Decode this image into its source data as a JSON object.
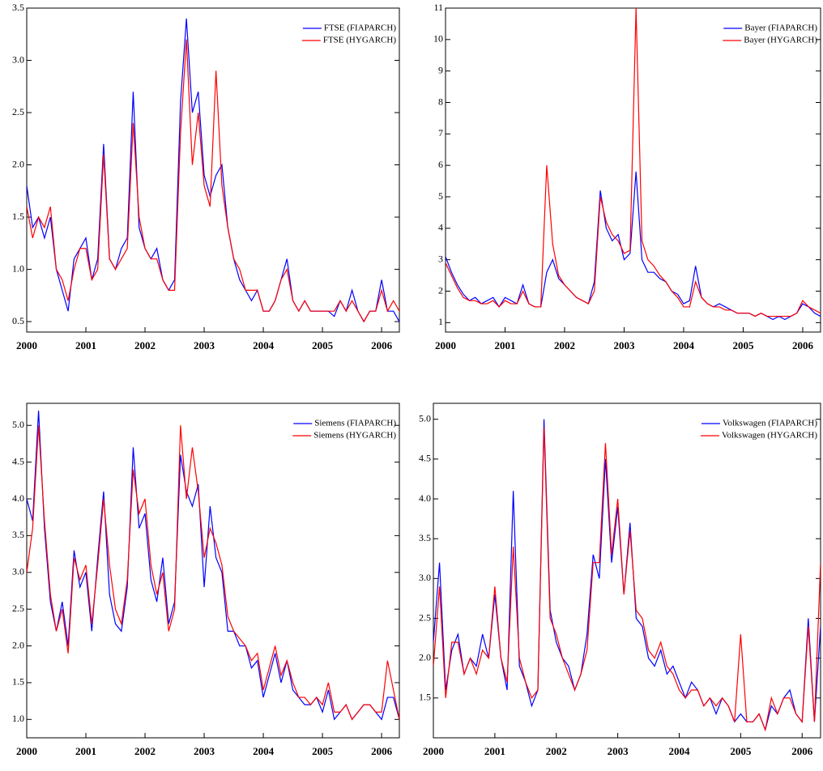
{
  "chart_data": [
    {
      "type": "line",
      "xlim": [
        2000,
        2006.3
      ],
      "xticks": [
        2000,
        2001,
        2002,
        2003,
        2004,
        2005,
        2006
      ],
      "ylim": [
        0.4,
        3.5
      ],
      "yticks": [
        0.5,
        {
          "value": 1,
          "label": "1.0"
        },
        1.5,
        {
          "value": 2,
          "label": "2.0"
        },
        2.5,
        {
          "value": 3,
          "label": "3.0"
        },
        3.5
      ],
      "legend": "top-right",
      "x": [
        2000,
        2000.1,
        2000.2,
        2000.3,
        2000.4,
        2000.5,
        2000.6,
        2000.7,
        2000.8,
        2000.9,
        2001,
        2001.1,
        2001.2,
        2001.3,
        2001.4,
        2001.5,
        2001.6,
        2001.7,
        2001.8,
        2001.9,
        2002,
        2002.1,
        2002.2,
        2002.3,
        2002.4,
        2002.5,
        2002.6,
        2002.7,
        2002.8,
        2002.9,
        2003,
        2003.1,
        2003.2,
        2003.3,
        2003.4,
        2003.5,
        2003.6,
        2003.7,
        2003.8,
        2003.9,
        2004,
        2004.1,
        2004.2,
        2004.3,
        2004.4,
        2004.5,
        2004.6,
        2004.7,
        2004.8,
        2004.9,
        2005,
        2005.1,
        2005.2,
        2005.3,
        2005.4,
        2005.5,
        2005.6,
        2005.7,
        2005.8,
        2005.9,
        2006,
        2006.1,
        2006.2,
        2006.3
      ],
      "series": [
        {
          "name": "FTSE (FIAPARCH)",
          "color": "#0000ff",
          "values": [
            1.8,
            1.4,
            1.5,
            1.3,
            1.5,
            1.0,
            0.8,
            0.6,
            1.1,
            1.2,
            1.3,
            0.9,
            1.1,
            2.2,
            1.1,
            1.0,
            1.2,
            1.3,
            2.7,
            1.4,
            1.2,
            1.1,
            1.2,
            0.9,
            0.8,
            0.9,
            2.6,
            3.4,
            2.5,
            2.7,
            1.9,
            1.7,
            1.9,
            2.0,
            1.4,
            1.1,
            0.9,
            0.8,
            0.7,
            0.8,
            0.6,
            0.6,
            0.7,
            0.9,
            1.1,
            0.7,
            0.6,
            0.7,
            0.6,
            0.6,
            0.6,
            0.6,
            0.55,
            0.7,
            0.6,
            0.8,
            0.6,
            0.5,
            0.6,
            0.6,
            0.9,
            0.6,
            0.6,
            0.5
          ]
        },
        {
          "name": "FTSE (HYGARCH)",
          "color": "#ff0000",
          "values": [
            1.6,
            1.3,
            1.5,
            1.4,
            1.6,
            1.0,
            0.9,
            0.7,
            1.0,
            1.2,
            1.2,
            0.9,
            1.0,
            2.1,
            1.1,
            1.0,
            1.1,
            1.2,
            2.4,
            1.5,
            1.2,
            1.1,
            1.1,
            0.9,
            0.8,
            0.8,
            2.3,
            3.2,
            2.0,
            2.5,
            1.8,
            1.6,
            2.9,
            1.8,
            1.4,
            1.1,
            1.0,
            0.8,
            0.8,
            0.8,
            0.6,
            0.6,
            0.7,
            0.9,
            1.0,
            0.7,
            0.6,
            0.7,
            0.6,
            0.6,
            0.6,
            0.6,
            0.6,
            0.7,
            0.6,
            0.7,
            0.6,
            0.5,
            0.6,
            0.6,
            0.8,
            0.6,
            0.7,
            0.6
          ]
        }
      ]
    },
    {
      "type": "line",
      "xlim": [
        2000,
        2006.3
      ],
      "xticks": [
        2000,
        2001,
        2002,
        2003,
        2004,
        2005,
        2006
      ],
      "ylim": [
        0.7,
        11
      ],
      "yticks": [
        1,
        2,
        3,
        4,
        5,
        6,
        7,
        8,
        9,
        10,
        11
      ],
      "legend": "top-right",
      "x": [
        2000,
        2000.1,
        2000.2,
        2000.3,
        2000.4,
        2000.5,
        2000.6,
        2000.7,
        2000.8,
        2000.9,
        2001,
        2001.1,
        2001.2,
        2001.3,
        2001.4,
        2001.5,
        2001.6,
        2001.7,
        2001.8,
        2001.9,
        2002,
        2002.1,
        2002.2,
        2002.3,
        2002.4,
        2002.5,
        2002.6,
        2002.7,
        2002.8,
        2002.9,
        2003,
        2003.1,
        2003.2,
        2003.3,
        2003.4,
        2003.5,
        2003.6,
        2003.7,
        2003.8,
        2003.9,
        2004,
        2004.1,
        2004.2,
        2004.3,
        2004.4,
        2004.5,
        2004.6,
        2004.7,
        2004.8,
        2004.9,
        2005,
        2005.1,
        2005.2,
        2005.3,
        2005.4,
        2005.5,
        2005.6,
        2005.7,
        2005.8,
        2005.9,
        2006,
        2006.1,
        2006.2,
        2006.3
      ],
      "series": [
        {
          "name": "Bayer (FIAPARCH)",
          "color": "#0000ff",
          "values": [
            3.1,
            2.6,
            2.2,
            1.9,
            1.7,
            1.8,
            1.6,
            1.7,
            1.8,
            1.5,
            1.8,
            1.7,
            1.6,
            2.2,
            1.6,
            1.5,
            1.5,
            2.6,
            3.0,
            2.4,
            2.2,
            2.0,
            1.8,
            1.7,
            1.6,
            2.3,
            5.2,
            4.0,
            3.6,
            3.8,
            3.0,
            3.2,
            5.8,
            3.0,
            2.6,
            2.6,
            2.4,
            2.3,
            2.0,
            1.9,
            1.6,
            1.7,
            2.8,
            1.8,
            1.6,
            1.5,
            1.6,
            1.5,
            1.4,
            1.3,
            1.3,
            1.3,
            1.2,
            1.3,
            1.2,
            1.1,
            1.2,
            1.1,
            1.2,
            1.3,
            1.6,
            1.5,
            1.3,
            1.2
          ]
        },
        {
          "name": "Bayer (HYGARCH)",
          "color": "#ff0000",
          "values": [
            2.9,
            2.5,
            2.1,
            1.8,
            1.7,
            1.7,
            1.6,
            1.6,
            1.7,
            1.5,
            1.7,
            1.6,
            1.6,
            2.0,
            1.6,
            1.5,
            1.5,
            6.0,
            3.5,
            2.5,
            2.2,
            2.0,
            1.8,
            1.7,
            1.6,
            2.0,
            5.0,
            4.2,
            3.8,
            3.6,
            3.2,
            3.3,
            11.0,
            3.6,
            3.0,
            2.8,
            2.5,
            2.3,
            2.0,
            1.8,
            1.5,
            1.5,
            2.3,
            1.8,
            1.6,
            1.5,
            1.5,
            1.4,
            1.4,
            1.3,
            1.3,
            1.3,
            1.2,
            1.3,
            1.2,
            1.2,
            1.2,
            1.2,
            1.2,
            1.3,
            1.7,
            1.5,
            1.4,
            1.3
          ]
        }
      ]
    },
    {
      "type": "line",
      "xlim": [
        2000,
        2006.3
      ],
      "xticks": [
        2000,
        2001,
        2002,
        2003,
        2004,
        2005,
        2006
      ],
      "ylim": [
        0.75,
        5.3
      ],
      "yticks": [
        {
          "value": 1,
          "label": "1.0"
        },
        1.5,
        {
          "value": 2,
          "label": "2.0"
        },
        2.5,
        {
          "value": 3,
          "label": "3.0"
        },
        3.5,
        {
          "value": 4,
          "label": "4.0"
        },
        4.5,
        {
          "value": 5,
          "label": "5.0"
        }
      ],
      "legend": "top-right",
      "x": [
        2000,
        2000.1,
        2000.2,
        2000.3,
        2000.4,
        2000.5,
        2000.6,
        2000.7,
        2000.8,
        2000.9,
        2001,
        2001.1,
        2001.2,
        2001.3,
        2001.4,
        2001.5,
        2001.6,
        2001.7,
        2001.8,
        2001.9,
        2002,
        2002.1,
        2002.2,
        2002.3,
        2002.4,
        2002.5,
        2002.6,
        2002.7,
        2002.8,
        2002.9,
        2003,
        2003.1,
        2003.2,
        2003.3,
        2003.4,
        2003.5,
        2003.6,
        2003.7,
        2003.8,
        2003.9,
        2004,
        2004.1,
        2004.2,
        2004.3,
        2004.4,
        2004.5,
        2004.6,
        2004.7,
        2004.8,
        2004.9,
        2005,
        2005.1,
        2005.2,
        2005.3,
        2005.4,
        2005.5,
        2005.6,
        2005.7,
        2005.8,
        2005.9,
        2006,
        2006.1,
        2006.2,
        2006.3
      ],
      "series": [
        {
          "name": "Siemens (FIAPARCH)",
          "color": "#0000ff",
          "values": [
            4.0,
            3.7,
            5.2,
            3.6,
            2.6,
            2.2,
            2.6,
            2.0,
            3.3,
            2.8,
            3.0,
            2.2,
            3.2,
            4.1,
            2.7,
            2.3,
            2.2,
            2.8,
            4.7,
            3.6,
            3.8,
            2.9,
            2.6,
            3.2,
            2.3,
            2.6,
            4.6,
            4.1,
            3.9,
            4.2,
            2.8,
            3.9,
            3.2,
            3.0,
            2.2,
            2.2,
            2.0,
            2.0,
            1.7,
            1.8,
            1.3,
            1.6,
            1.9,
            1.5,
            1.8,
            1.4,
            1.3,
            1.2,
            1.2,
            1.3,
            1.1,
            1.4,
            1.0,
            1.1,
            1.2,
            1.0,
            1.1,
            1.2,
            1.2,
            1.1,
            1.0,
            1.3,
            1.3,
            1.0
          ]
        },
        {
          "name": "Siemens (HYGARCH)",
          "color": "#ff0000",
          "values": [
            3.0,
            3.6,
            5.0,
            3.7,
            2.7,
            2.2,
            2.5,
            1.9,
            3.2,
            2.9,
            3.1,
            2.3,
            3.1,
            4.0,
            3.1,
            2.5,
            2.3,
            2.9,
            4.4,
            3.8,
            4.0,
            3.1,
            2.7,
            3.0,
            2.2,
            2.5,
            5.0,
            4.0,
            4.7,
            4.1,
            3.2,
            3.6,
            3.4,
            3.1,
            2.4,
            2.2,
            2.1,
            2.0,
            1.8,
            1.9,
            1.4,
            1.7,
            2.0,
            1.6,
            1.8,
            1.5,
            1.3,
            1.3,
            1.2,
            1.3,
            1.2,
            1.5,
            1.1,
            1.1,
            1.2,
            1.0,
            1.1,
            1.2,
            1.2,
            1.1,
            1.1,
            1.8,
            1.4,
            1.0
          ]
        }
      ]
    },
    {
      "type": "line",
      "xlim": [
        2000,
        2006.3
      ],
      "xticks": [
        2000,
        2001,
        2002,
        2003,
        2004,
        2005,
        2006
      ],
      "ylim": [
        1.0,
        5.2
      ],
      "yticks": [
        1.5,
        {
          "value": 2,
          "label": "2.0"
        },
        2.5,
        {
          "value": 3,
          "label": "3.0"
        },
        3.5,
        {
          "value": 4,
          "label": "4.0"
        },
        4.5,
        {
          "value": 5,
          "label": "5.0"
        }
      ],
      "legend": "top-right",
      "x": [
        2000,
        2000.1,
        2000.2,
        2000.3,
        2000.4,
        2000.5,
        2000.6,
        2000.7,
        2000.8,
        2000.9,
        2001,
        2001.1,
        2001.2,
        2001.3,
        2001.4,
        2001.5,
        2001.6,
        2001.7,
        2001.8,
        2001.9,
        2002,
        2002.1,
        2002.2,
        2002.3,
        2002.4,
        2002.5,
        2002.6,
        2002.7,
        2002.8,
        2002.9,
        2003,
        2003.1,
        2003.2,
        2003.3,
        2003.4,
        2003.5,
        2003.6,
        2003.7,
        2003.8,
        2003.9,
        2004,
        2004.1,
        2004.2,
        2004.3,
        2004.4,
        2004.5,
        2004.6,
        2004.7,
        2004.8,
        2004.9,
        2005,
        2005.1,
        2005.2,
        2005.3,
        2005.4,
        2005.5,
        2005.6,
        2005.7,
        2005.8,
        2005.9,
        2006,
        2006.1,
        2006.2,
        2006.3
      ],
      "series": [
        {
          "name": "Volkswagen (FIAPARCH)",
          "color": "#0000ff",
          "values": [
            2.2,
            3.2,
            1.6,
            2.1,
            2.3,
            1.8,
            2.0,
            1.9,
            2.3,
            2.0,
            2.8,
            2.0,
            1.6,
            4.1,
            1.9,
            1.7,
            1.4,
            1.6,
            5.0,
            2.6,
            2.2,
            2.0,
            1.9,
            1.6,
            1.8,
            2.3,
            3.3,
            3.0,
            4.5,
            3.2,
            3.9,
            2.8,
            3.7,
            2.5,
            2.4,
            2.0,
            1.9,
            2.1,
            1.8,
            1.9,
            1.7,
            1.5,
            1.7,
            1.6,
            1.4,
            1.5,
            1.3,
            1.5,
            1.4,
            1.2,
            1.3,
            1.2,
            1.2,
            1.3,
            1.1,
            1.4,
            1.3,
            1.5,
            1.6,
            1.3,
            1.2,
            2.5,
            1.2,
            2.4
          ]
        },
        {
          "name": "Volkswagen (HYGARCH)",
          "color": "#ff0000",
          "values": [
            1.9,
            2.9,
            1.5,
            2.2,
            2.2,
            1.8,
            2.0,
            1.8,
            2.1,
            2.0,
            2.9,
            2.0,
            1.7,
            3.4,
            2.0,
            1.7,
            1.5,
            1.6,
            4.9,
            2.5,
            2.3,
            2.0,
            1.8,
            1.6,
            1.8,
            2.1,
            3.2,
            3.2,
            4.7,
            3.3,
            4.0,
            2.8,
            3.6,
            2.6,
            2.5,
            2.1,
            2.0,
            2.2,
            1.9,
            1.8,
            1.6,
            1.5,
            1.6,
            1.6,
            1.4,
            1.5,
            1.4,
            1.5,
            1.4,
            1.2,
            2.3,
            1.2,
            1.2,
            1.3,
            1.1,
            1.5,
            1.3,
            1.5,
            1.5,
            1.3,
            1.2,
            2.4,
            1.2,
            3.2
          ]
        }
      ]
    }
  ]
}
